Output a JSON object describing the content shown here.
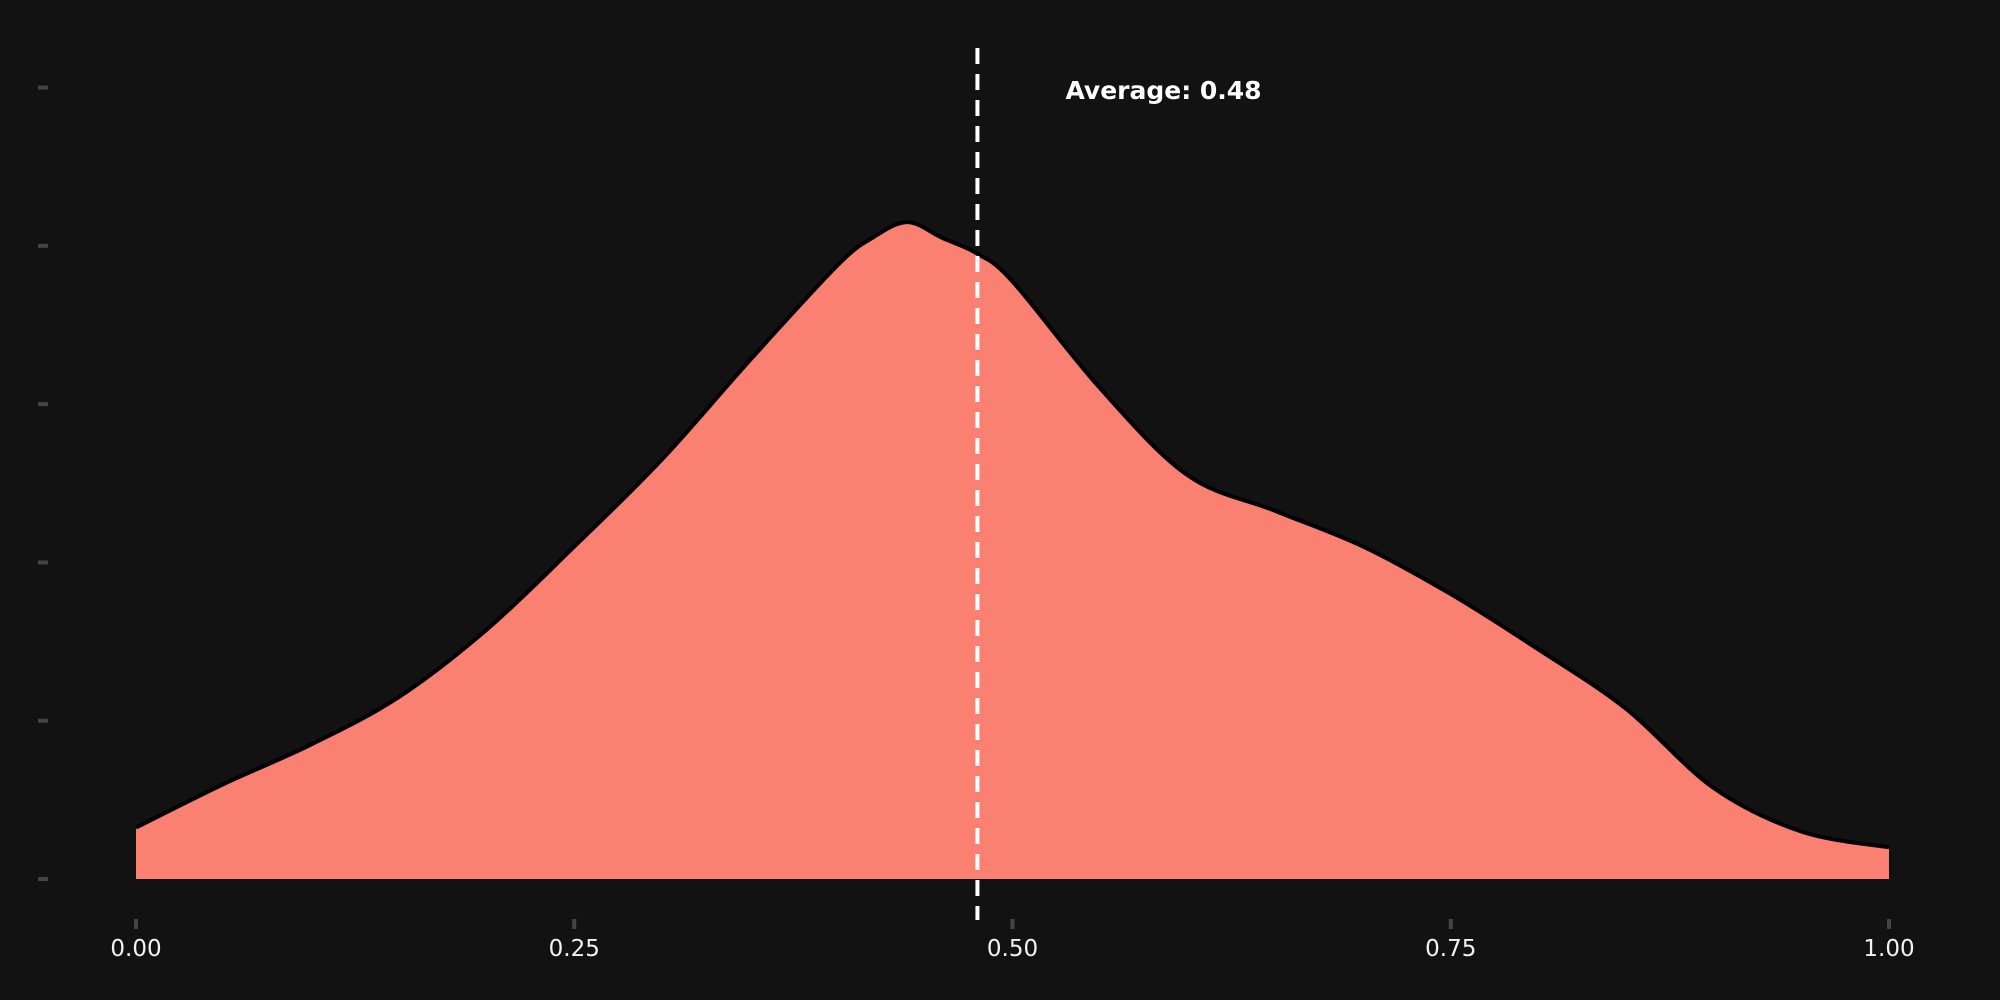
{
  "chart_data": {
    "type": "area",
    "title": "",
    "xlabel": "",
    "ylabel": "",
    "xlim": [
      0,
      1
    ],
    "ylim": [
      0,
      2.1
    ],
    "grid": false,
    "x_ticks": [
      "0.00",
      "0.25",
      "0.50",
      "0.75",
      "1.00"
    ],
    "x_tick_values": [
      0,
      0.25,
      0.5,
      0.75,
      1.0
    ],
    "y_tick_values": [
      0,
      0.4,
      0.8,
      1.2,
      1.6,
      2.0
    ],
    "series": [
      {
        "x": [
          0.0,
          0.05,
          0.1,
          0.15,
          0.2,
          0.25,
          0.3,
          0.35,
          0.4,
          0.42,
          0.44,
          0.46,
          0.48,
          0.5,
          0.55,
          0.6,
          0.65,
          0.7,
          0.75,
          0.8,
          0.85,
          0.9,
          0.95,
          1.0
        ],
        "values": [
          0.13,
          0.24,
          0.34,
          0.46,
          0.63,
          0.84,
          1.06,
          1.31,
          1.55,
          1.62,
          1.66,
          1.62,
          1.58,
          1.51,
          1.24,
          1.02,
          0.93,
          0.84,
          0.72,
          0.58,
          0.43,
          0.23,
          0.12,
          0.08
        ],
        "color": "#fa8072"
      }
    ],
    "annotations": {
      "average_value": 0.48,
      "average_label": "Average: 0.48"
    },
    "colors": {
      "background": "#121212",
      "fill": "#fa8072",
      "outline": "#000000",
      "average_line": "#ffffff",
      "axis_ticks": "#444444",
      "tick_text": "#f2f2f2"
    }
  }
}
